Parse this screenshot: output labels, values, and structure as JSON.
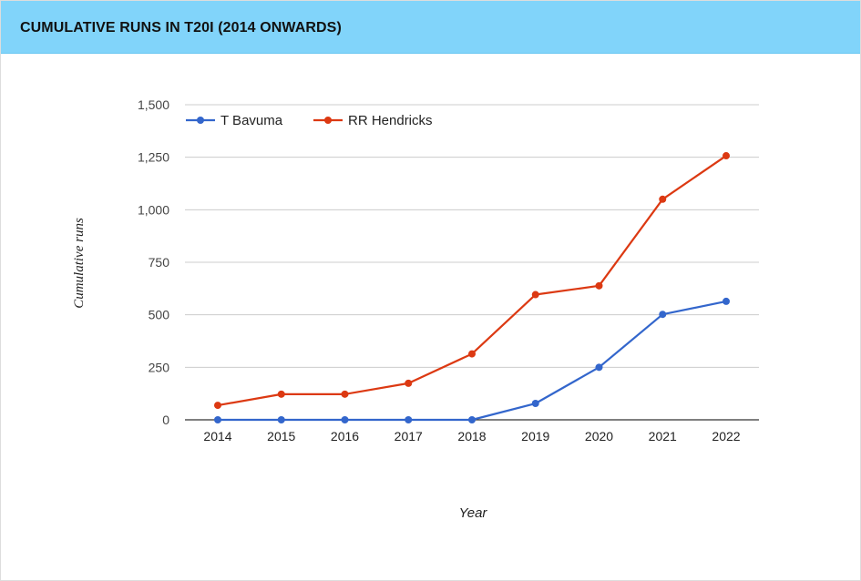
{
  "panel": {
    "title": "CUMULATIVE RUNS IN T20I (2014 ONWARDS)"
  },
  "colors": {
    "header_bg": "#81d4fa",
    "gridline": "#cccccc",
    "baseline": "#333333",
    "series_1": "#3366cc",
    "series_2": "#dc3912"
  },
  "chart_data": {
    "type": "line",
    "title": "",
    "xlabel": "Year",
    "ylabel": "Cumulative runs",
    "x": [
      "2014",
      "2015",
      "2016",
      "2017",
      "2018",
      "2019",
      "2020",
      "2021",
      "2022"
    ],
    "ylim": [
      0,
      1500
    ],
    "yticks": [
      0,
      250,
      500,
      750,
      1000,
      1250,
      1500
    ],
    "ytick_labels": [
      "0",
      "250",
      "500",
      "750",
      "1,000",
      "1,250",
      "1,500"
    ],
    "grid": true,
    "legend_position": "top-left",
    "series": [
      {
        "name": "T Bavuma",
        "color": "#3366cc",
        "values": [
          0,
          0,
          0,
          0,
          0,
          78,
          250,
          502,
          564
        ]
      },
      {
        "name": "RR Hendricks",
        "color": "#dc3912",
        "values": [
          69,
          122,
          122,
          174,
          314,
          596,
          638,
          1050,
          1257
        ]
      }
    ]
  }
}
